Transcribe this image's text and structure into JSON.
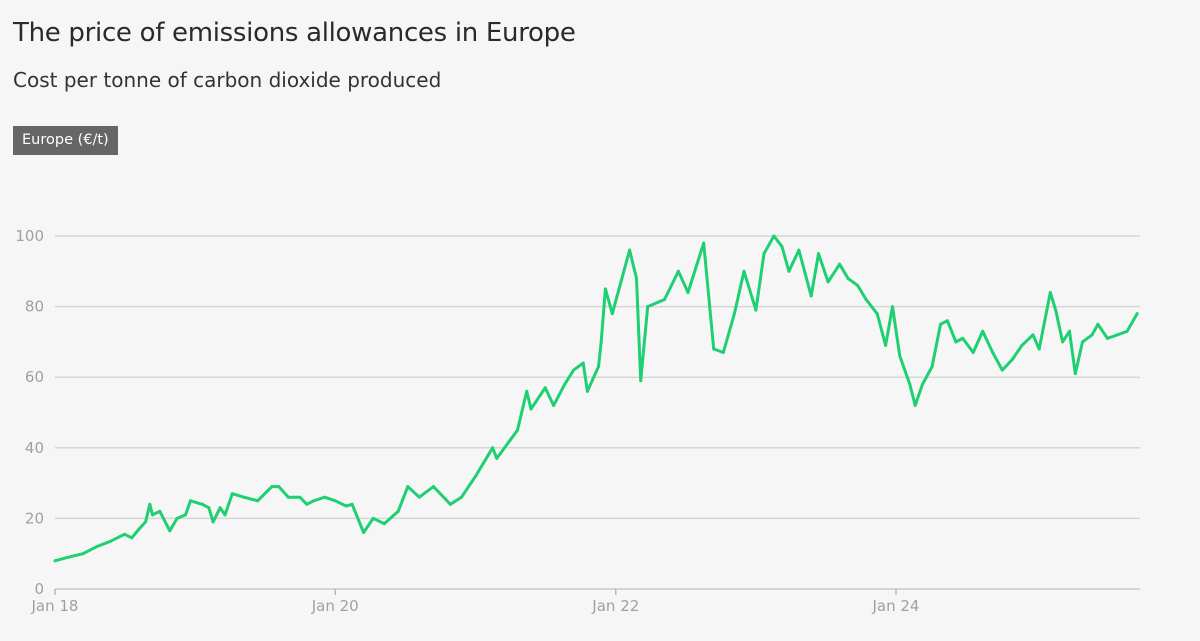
{
  "title": "The price of emissions allowances in Europe",
  "subtitle": "Cost per tonne of carbon dioxide produced",
  "chart_data": {
    "type": "line",
    "title": "The price of emissions allowances in Europe",
    "subtitle": "Cost per tonne of carbon dioxide produced",
    "xlabel": "",
    "ylabel": "",
    "ylim": [
      0,
      100
    ],
    "xlim": [
      "2018-01-01",
      "2025-09-20"
    ],
    "grid": "horizontal",
    "legend": {
      "position": "top-left",
      "entries": [
        "Europe (€/t)"
      ]
    },
    "y_ticks": [
      "0",
      "20",
      "40",
      "60",
      "80",
      "100"
    ],
    "x_ticks": [
      {
        "date": "2018-01-01",
        "label": "Jan 18"
      },
      {
        "date": "2020-01-01",
        "label": "Jan 20"
      },
      {
        "date": "2022-01-01",
        "label": "Jan 22"
      },
      {
        "date": "2024-01-01",
        "label": "Jan 24"
      }
    ],
    "series": [
      {
        "name": "Europe (€/t)",
        "color": "#1ed072",
        "points": [
          [
            "2018-01-01",
            8
          ],
          [
            "2018-02-05",
            9
          ],
          [
            "2018-03-15",
            10
          ],
          [
            "2018-04-20",
            12
          ],
          [
            "2018-05-25",
            13.5
          ],
          [
            "2018-07-01",
            15.5
          ],
          [
            "2018-07-20",
            14.5
          ],
          [
            "2018-08-08",
            17
          ],
          [
            "2018-08-25",
            19
          ],
          [
            "2018-09-05",
            24
          ],
          [
            "2018-09-12",
            21
          ],
          [
            "2018-10-01",
            22
          ],
          [
            "2018-10-27",
            16.5
          ],
          [
            "2018-11-15",
            20
          ],
          [
            "2018-12-07",
            21
          ],
          [
            "2018-12-20",
            25
          ],
          [
            "2019-01-20",
            24
          ],
          [
            "2019-02-06",
            23
          ],
          [
            "2019-02-17",
            19
          ],
          [
            "2019-03-07",
            23
          ],
          [
            "2019-03-20",
            21
          ],
          [
            "2019-04-08",
            27
          ],
          [
            "2019-05-08",
            26
          ],
          [
            "2019-06-13",
            25
          ],
          [
            "2019-07-20",
            29
          ],
          [
            "2019-08-07",
            29
          ],
          [
            "2019-09-01",
            26
          ],
          [
            "2019-10-01",
            26
          ],
          [
            "2019-10-19",
            24
          ],
          [
            "2019-11-06",
            25
          ],
          [
            "2019-12-05",
            26
          ],
          [
            "2020-01-01",
            25
          ],
          [
            "2020-01-30",
            23.5
          ],
          [
            "2020-02-14",
            24
          ],
          [
            "2020-03-15",
            16
          ],
          [
            "2020-04-09",
            20
          ],
          [
            "2020-05-08",
            18.5
          ],
          [
            "2020-06-13",
            22
          ],
          [
            "2020-07-08",
            29
          ],
          [
            "2020-08-07",
            26
          ],
          [
            "2020-09-13",
            29
          ],
          [
            "2020-10-27",
            24
          ],
          [
            "2020-11-25",
            26
          ],
          [
            "2021-01-01",
            32
          ],
          [
            "2021-02-14",
            40
          ],
          [
            "2021-02-25",
            37
          ],
          [
            "2021-04-20",
            45
          ],
          [
            "2021-05-14",
            56
          ],
          [
            "2021-05-25",
            51
          ],
          [
            "2021-07-01",
            57
          ],
          [
            "2021-07-23",
            52
          ],
          [
            "2021-08-21",
            58
          ],
          [
            "2021-09-13",
            62
          ],
          [
            "2021-10-08",
            64
          ],
          [
            "2021-10-19",
            56
          ],
          [
            "2021-11-17",
            63
          ],
          [
            "2021-11-24",
            70
          ],
          [
            "2021-12-05",
            85
          ],
          [
            "2021-12-23",
            78
          ],
          [
            "2022-02-06",
            96
          ],
          [
            "2022-02-24",
            88
          ],
          [
            "2022-03-07",
            59
          ],
          [
            "2022-03-25",
            80
          ],
          [
            "2022-05-08",
            82
          ],
          [
            "2022-06-13",
            90
          ],
          [
            "2022-07-08",
            84
          ],
          [
            "2022-08-18",
            98
          ],
          [
            "2022-09-13",
            68
          ],
          [
            "2022-10-08",
            67
          ],
          [
            "2022-11-06",
            78
          ],
          [
            "2022-12-01",
            90
          ],
          [
            "2023-01-01",
            79
          ],
          [
            "2023-01-22",
            95
          ],
          [
            "2023-02-17",
            100
          ],
          [
            "2023-03-10",
            97
          ],
          [
            "2023-03-28",
            90
          ],
          [
            "2023-04-23",
            96
          ],
          [
            "2023-05-25",
            83
          ],
          [
            "2023-06-13",
            95
          ],
          [
            "2023-07-08",
            87
          ],
          [
            "2023-08-07",
            92
          ],
          [
            "2023-08-29",
            88
          ],
          [
            "2023-09-23",
            86
          ],
          [
            "2023-10-15",
            82
          ],
          [
            "2023-11-13",
            78
          ],
          [
            "2023-12-05",
            69
          ],
          [
            "2023-12-23",
            80
          ],
          [
            "2024-01-11",
            66
          ],
          [
            "2024-02-06",
            58
          ],
          [
            "2024-02-20",
            52
          ],
          [
            "2024-03-10",
            58
          ],
          [
            "2024-04-04",
            63
          ],
          [
            "2024-04-26",
            75
          ],
          [
            "2024-05-14",
            76
          ],
          [
            "2024-06-05",
            70
          ],
          [
            "2024-06-23",
            71
          ],
          [
            "2024-07-20",
            67
          ],
          [
            "2024-08-14",
            73
          ],
          [
            "2024-09-09",
            67
          ],
          [
            "2024-10-04",
            62
          ],
          [
            "2024-10-30",
            65
          ],
          [
            "2024-11-24",
            69
          ],
          [
            "2024-12-23",
            72
          ],
          [
            "2025-01-08",
            68
          ],
          [
            "2025-02-06",
            84
          ],
          [
            "2025-02-20",
            79
          ],
          [
            "2025-03-10",
            70
          ],
          [
            "2025-03-28",
            73
          ],
          [
            "2025-04-12",
            61
          ],
          [
            "2025-05-01",
            70
          ],
          [
            "2025-05-26",
            72
          ],
          [
            "2025-06-10",
            75
          ],
          [
            "2025-07-05",
            71
          ],
          [
            "2025-07-31",
            72
          ],
          [
            "2025-08-25",
            73
          ],
          [
            "2025-09-20",
            78
          ]
        ]
      }
    ]
  }
}
